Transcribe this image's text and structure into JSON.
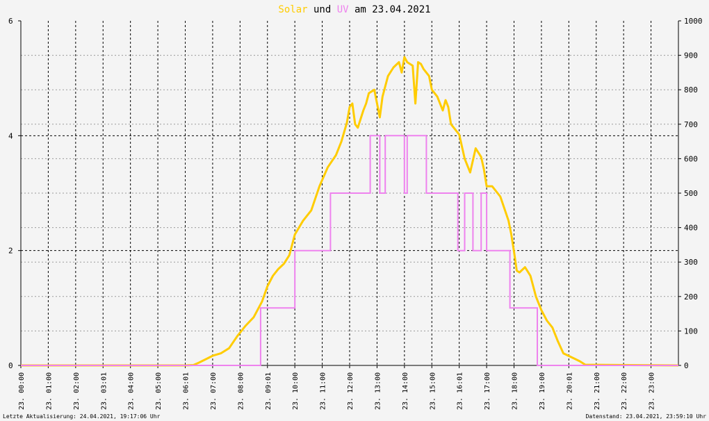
{
  "chart_data": {
    "type": "line",
    "title": {
      "parts": [
        {
          "text": "Solar",
          "color": "#ffcc00"
        },
        {
          "text": " und ",
          "color": "#000000"
        },
        {
          "text": "UV",
          "color": "#ee82ee"
        },
        {
          "text": " am 23.04.2021",
          "color": "#000000"
        }
      ]
    },
    "x_range_hours": [
      0,
      24
    ],
    "x_tick_labels": [
      "23. 00:00",
      "23. 01:00",
      "23. 02:00",
      "23. 03:01",
      "23. 04:00",
      "23. 05:00",
      "23. 06:01",
      "23. 07:00",
      "23. 08:00",
      "23. 09:01",
      "23. 10:00",
      "23. 11:00",
      "23. 12:00",
      "23. 13:00",
      "23. 14:00",
      "23. 15:00",
      "23. 16:01",
      "23. 17:00",
      "23. 18:00",
      "23. 19:00",
      "23. 20:01",
      "23. 21:00",
      "23. 22:00",
      "23. 23:00"
    ],
    "y_left": {
      "label": "",
      "range": [
        0,
        6
      ],
      "ticks": [
        0,
        2,
        4,
        6
      ]
    },
    "y_right": {
      "label": "",
      "range": [
        0,
        1000
      ],
      "ticks": [
        0,
        100,
        200,
        300,
        400,
        500,
        600,
        700,
        800,
        900,
        1000
      ]
    },
    "grid": true,
    "colors": {
      "background": "#f4f4f4",
      "grid": "#000000",
      "solar": "#ffcc00",
      "uv": "#ee82ee"
    },
    "series": [
      {
        "name": "Solar",
        "axis": "right",
        "color": "#ffcc00",
        "x": [
          0,
          6.0,
          6.3,
          6.5,
          6.8,
          7.0,
          7.3,
          7.6,
          7.9,
          8.2,
          8.5,
          8.8,
          9.0,
          9.2,
          9.4,
          9.6,
          9.8,
          10.0,
          10.3,
          10.6,
          10.9,
          11.2,
          11.5,
          11.7,
          11.9,
          12.0,
          12.1,
          12.2,
          12.3,
          12.5,
          12.6,
          12.7,
          12.9,
          13.1,
          13.2,
          13.4,
          13.6,
          13.8,
          13.9,
          14.0,
          14.1,
          14.3,
          14.4,
          14.5,
          14.6,
          14.7,
          14.9,
          15.0,
          15.2,
          15.4,
          15.5,
          15.6,
          15.7,
          15.8,
          16.0,
          16.2,
          16.4,
          16.6,
          16.8,
          16.9,
          17.0,
          17.2,
          17.5,
          17.8,
          17.9,
          18.0,
          18.1,
          18.2,
          18.4,
          18.6,
          18.8,
          19.0,
          19.2,
          19.4,
          19.6,
          19.8,
          20.2,
          20.4,
          20.6,
          24.0
        ],
        "y": [
          0,
          0,
          1,
          8,
          20,
          28,
          35,
          50,
          85,
          115,
          140,
          185,
          230,
          260,
          280,
          295,
          320,
          380,
          420,
          450,
          520,
          575,
          610,
          650,
          705,
          750,
          760,
          700,
          690,
          740,
          760,
          790,
          800,
          720,
          780,
          840,
          865,
          880,
          850,
          895,
          880,
          870,
          760,
          880,
          875,
          860,
          840,
          800,
          780,
          740,
          770,
          750,
          700,
          690,
          670,
          600,
          560,
          630,
          605,
          570,
          520,
          520,
          490,
          420,
          380,
          330,
          275,
          270,
          285,
          260,
          200,
          160,
          130,
          110,
          70,
          35,
          20,
          12,
          2,
          0
        ]
      },
      {
        "name": "UV",
        "axis": "left",
        "color": "#ee82ee",
        "step": true,
        "x": [
          0,
          8.75,
          10.0,
          11.3,
          12.75,
          13.1,
          13.3,
          14.0,
          14.1,
          14.8,
          15.95,
          16.2,
          16.5,
          16.8,
          17.0,
          17.85,
          18.1,
          18.85,
          24.0
        ],
        "y": [
          0,
          1,
          2,
          3,
          4,
          3,
          4,
          3,
          4,
          3,
          2,
          3,
          2,
          3,
          2,
          1,
          1,
          0,
          0
        ]
      }
    ],
    "footer": {
      "left": "Letzte Aktualisierung: 24.04.2021, 19:17:06 Uhr",
      "right": "Datenstand: 23.04.2021, 23:59:10 Uhr"
    }
  }
}
